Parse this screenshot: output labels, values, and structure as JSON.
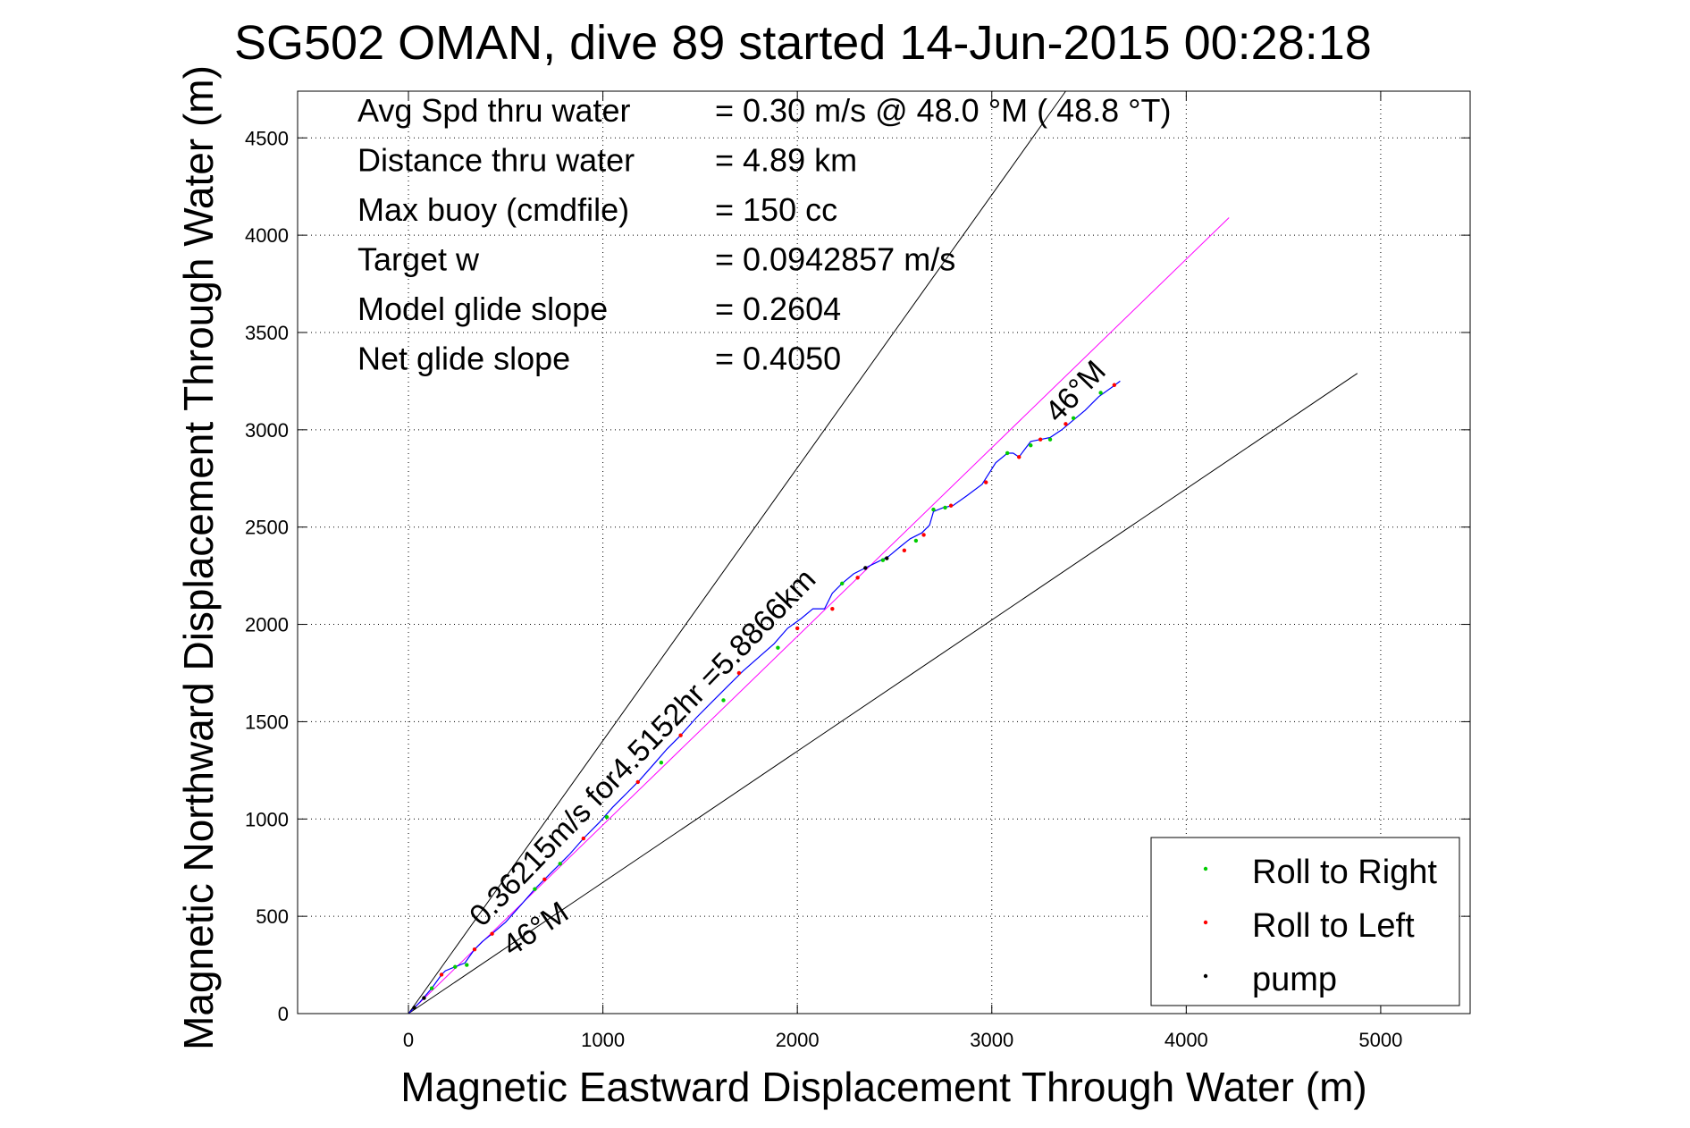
{
  "chart_data": {
    "type": "line",
    "title": "SG502 OMAN, dive 89 started 14-Jun-2015 00:28:18",
    "xlabel": "Magnetic Eastward Displacement Through Water (m)",
    "ylabel": "Magnetic Northward Displacement Through Water (m)",
    "xlim": [
      -570,
      5460
    ],
    "ylim": [
      0,
      4740
    ],
    "xticks": [
      0,
      1000,
      2000,
      3000,
      4000,
      5000
    ],
    "yticks": [
      0,
      500,
      1000,
      1500,
      2000,
      2500,
      3000,
      3500,
      4000,
      4500
    ],
    "xtick_labels": [
      "0",
      "1000",
      "2000",
      "3000",
      "4000",
      "5000"
    ],
    "ytick_labels": [
      "0",
      "500",
      "1000",
      "1500",
      "2000",
      "2500",
      "3000",
      "3500",
      "4000",
      "4500"
    ],
    "grid": true,
    "legend_position": "bottom-right",
    "stats": [
      {
        "label": "Avg Spd thru water",
        "value": "=  0.30 m/s @  48.0 °M ( 48.8 °T)"
      },
      {
        "label": "Distance thru water",
        "value": "=  4.89 km"
      },
      {
        "label": "Max buoy (cmdfile)",
        "value": "= 150 cc"
      },
      {
        "label": "Target w",
        "value": "= 0.0942857 m/s"
      },
      {
        "label": "Model glide slope",
        "value": "= 0.2604"
      },
      {
        "label": "Net glide slope",
        "value": "= 0.4050"
      }
    ],
    "annotations": [
      {
        "text": "0.36215m/s for4.5152hr =5.8866km",
        "x": 380,
        "y": 440,
        "angle_deg": 46
      },
      {
        "text": "46°M",
        "x": 530,
        "y": 290,
        "angle_deg": 34
      },
      {
        "text": "46°M",
        "x": 3340,
        "y": 3030,
        "angle_deg": 46
      }
    ],
    "reference_lines": [
      {
        "name": "upper bound",
        "color": "#000000",
        "x": [
          0,
          3380
        ],
        "y": [
          0,
          4740
        ]
      },
      {
        "name": "lower bound",
        "color": "#000000",
        "x": [
          0,
          4880
        ],
        "y": [
          0,
          3290
        ]
      },
      {
        "name": "target heading",
        "color": "#ff00ff",
        "x": [
          0,
          4220
        ],
        "y": [
          0,
          4090
        ]
      }
    ],
    "series": [
      {
        "type": "line",
        "color": "#0000ff",
        "x": [
          0,
          60,
          120,
          170,
          190,
          240,
          290,
          340,
          380,
          430,
          500,
          580,
          650,
          700,
          760,
          830,
          900,
          980,
          1050,
          1120,
          1190,
          1260,
          1330,
          1400,
          1480,
          1560,
          1640,
          1720,
          1800,
          1880,
          1950,
          2020,
          2080,
          2140,
          2180,
          2230,
          2290,
          2350,
          2410,
          2470,
          2530,
          2580,
          2640,
          2680,
          2700,
          2750,
          2800,
          2870,
          2950,
          3020,
          3080,
          3110,
          3140,
          3170,
          3200,
          3250,
          3300,
          3360,
          3420,
          3480,
          3550,
          3620,
          3660
        ],
        "y": [
          0,
          60,
          130,
          200,
          220,
          240,
          260,
          330,
          370,
          410,
          470,
          560,
          640,
          690,
          750,
          820,
          900,
          980,
          1060,
          1130,
          1200,
          1280,
          1360,
          1430,
          1520,
          1600,
          1680,
          1760,
          1830,
          1900,
          1980,
          2030,
          2080,
          2080,
          2160,
          2210,
          2260,
          2290,
          2320,
          2350,
          2400,
          2440,
          2470,
          2510,
          2580,
          2600,
          2610,
          2660,
          2720,
          2830,
          2880,
          2880,
          2860,
          2900,
          2940,
          2950,
          2960,
          3000,
          3050,
          3100,
          3170,
          3220,
          3250
        ]
      },
      {
        "name": "Roll to Right",
        "type": "scatter",
        "color": "#00cc00",
        "x": [
          120,
          240,
          300,
          650,
          780,
          1020,
          1300,
          1620,
          1900,
          2230,
          2440,
          2610,
          2700,
          2760,
          3080,
          3200,
          3300,
          3420,
          3560
        ],
        "y": [
          130,
          240,
          250,
          640,
          770,
          1010,
          1290,
          1610,
          1880,
          2210,
          2330,
          2430,
          2590,
          2600,
          2880,
          2920,
          2950,
          3060,
          3190
        ]
      },
      {
        "name": "Roll to Left",
        "type": "scatter",
        "color": "#ff0000",
        "x": [
          170,
          340,
          430,
          700,
          900,
          1180,
          1400,
          1700,
          2000,
          2180,
          2310,
          2550,
          2650,
          2790,
          2970,
          3140,
          3250,
          3380,
          3630
        ],
        "y": [
          200,
          330,
          410,
          690,
          900,
          1190,
          1430,
          1750,
          1980,
          2080,
          2240,
          2380,
          2460,
          2610,
          2730,
          2860,
          2950,
          3030,
          3230
        ]
      },
      {
        "name": "pump",
        "type": "scatter",
        "color": "#000000",
        "x": [
          30,
          80,
          2350,
          2460
        ],
        "y": [
          30,
          80,
          2290,
          2340
        ]
      }
    ]
  }
}
